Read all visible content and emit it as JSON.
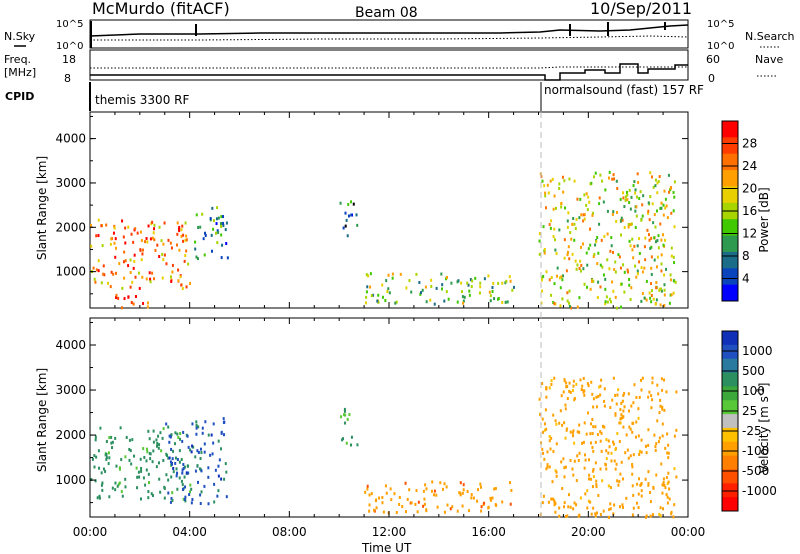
{
  "header": {
    "title": "McMurdo (fitACF)",
    "beam": "Beam 08",
    "date": "10/Sep/2011"
  },
  "top_panels": {
    "nsky_label": "N.Sky",
    "nsearch_label": "N.Search",
    "noise_left_ticks": [
      "10^5",
      "10^0"
    ],
    "noise_right_ticks": [
      "10^5",
      "10^0"
    ],
    "freq_label": "Freq.",
    "freq_unit": "[MHz]",
    "freq_ticks": [
      "18",
      "8"
    ],
    "nave_label": "Nave",
    "nave_ticks": [
      "60",
      "0"
    ],
    "cpid_label": "CPID",
    "cpid_modes": [
      {
        "name": "themis 3300 RF",
        "start_hour": 0,
        "end_hour": 18
      },
      {
        "name": "normalsound (fast) 157 RF",
        "start_hour": 18,
        "end_hour": 24
      }
    ]
  },
  "power_colorbar": {
    "label": "Power [dB]",
    "ticks": [
      "28",
      "24",
      "20",
      "16",
      "12",
      "8",
      "4"
    ],
    "colors": [
      "#ff0000",
      "#ff3c00",
      "#ff7000",
      "#ffa000",
      "#e8d000",
      "#a8d400",
      "#40c800",
      "#2e9a50",
      "#1a6c88",
      "#0a44bc",
      "#0000ff"
    ]
  },
  "velocity_colorbar": {
    "label": "Velocity [m s",
    "label_sup": "-1",
    "label_end": "]",
    "ticks": [
      "1000",
      "500",
      "100",
      "25",
      "-25",
      "-100",
      "-500",
      "-1000"
    ],
    "colors": [
      "#1030b8",
      "#2050c0",
      "#2a7aa0",
      "#2c8f60",
      "#3ca83c",
      "#58c838",
      "#c0c0c0",
      "#ffc000",
      "#ffa000",
      "#ff8000",
      "#ff5000",
      "#ff2000",
      "#ff0000"
    ]
  },
  "chart_data": [
    {
      "type": "heatmap",
      "name": "Power",
      "ylabel": "Slant Range [km]",
      "yticks": [
        "1000",
        "2000",
        "3000",
        "4000"
      ],
      "ylim": [
        180,
        4600
      ],
      "xlim_hours": [
        0,
        24
      ],
      "features": [
        {
          "t0": 0.0,
          "t1": 4.0,
          "r0": 650,
          "r1": 2200,
          "level": 0.75
        },
        {
          "t0": 1.0,
          "t1": 3.0,
          "r0": 200,
          "r1": 500,
          "level": 0.95
        },
        {
          "t0": 4.0,
          "t1": 5.5,
          "r0": 1300,
          "r1": 2500,
          "level": 0.3
        },
        {
          "t0": 10.0,
          "t1": 10.7,
          "r0": 1800,
          "r1": 2700,
          "level": 0.2
        },
        {
          "t0": 11.0,
          "t1": 17.0,
          "r0": 300,
          "r1": 1000,
          "level": 0.45
        },
        {
          "t0": 18.0,
          "t1": 23.5,
          "r0": 200,
          "r1": 3300,
          "level": 0.55
        }
      ]
    },
    {
      "type": "heatmap",
      "name": "Velocity",
      "ylabel": "Slant Range [km]",
      "yticks": [
        "1000",
        "2000",
        "3000",
        "4000"
      ],
      "ylim": [
        180,
        4600
      ],
      "xlabel": "Time UT",
      "xticks": [
        "00:00",
        "04:00",
        "08:00",
        "12:00",
        "16:00",
        "20:00",
        "00:00"
      ],
      "xlim_hours": [
        0,
        24
      ],
      "features": [
        {
          "t0": 0.0,
          "t1": 4.0,
          "r0": 600,
          "r1": 2200,
          "velocity": 150
        },
        {
          "t0": 3.0,
          "t1": 5.5,
          "r0": 500,
          "r1": 2400,
          "velocity": 600
        },
        {
          "t0": 10.0,
          "t1": 10.7,
          "r0": 1800,
          "r1": 2700,
          "velocity": 100
        },
        {
          "t0": 11.0,
          "t1": 17.0,
          "r0": 300,
          "r1": 1000,
          "velocity": -300
        },
        {
          "t0": 18.0,
          "t1": 23.5,
          "r0": 200,
          "r1": 3300,
          "velocity": -200
        }
      ]
    }
  ]
}
